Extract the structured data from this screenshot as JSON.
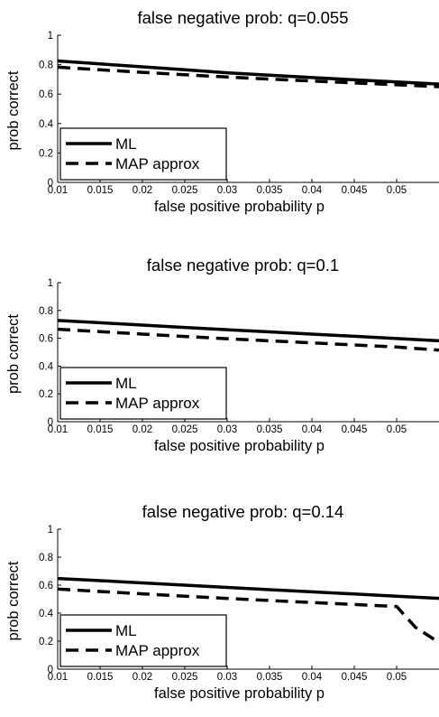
{
  "chart_data": [
    {
      "type": "line",
      "title": "false negative prob: q=0.055",
      "xlabel": "false positive probability p",
      "ylabel": "prob correct",
      "xlim": [
        0.01,
        0.055
      ],
      "ylim": [
        0,
        1
      ],
      "xticks": [
        "0.01",
        "0.015",
        "0.02",
        "0.025",
        "0.03",
        "0.035",
        "0.04",
        "0.045",
        "0.05"
      ],
      "yticks": [
        "0",
        "0.2",
        "0.4",
        "0.6",
        "0.8",
        "1"
      ],
      "legend_position": "lower-left",
      "series": [
        {
          "name": "ML",
          "style": "solid",
          "x": [
            0.01,
            0.015,
            0.02,
            0.025,
            0.03,
            0.035,
            0.04,
            0.045,
            0.05,
            0.055
          ],
          "y": [
            0.825,
            0.805,
            0.785,
            0.765,
            0.745,
            0.728,
            0.712,
            0.697,
            0.682,
            0.668
          ]
        },
        {
          "name": "MAP approx",
          "style": "dashed",
          "x": [
            0.01,
            0.015,
            0.02,
            0.025,
            0.03,
            0.035,
            0.04,
            0.045,
            0.05,
            0.055
          ],
          "y": [
            0.783,
            0.765,
            0.748,
            0.731,
            0.716,
            0.702,
            0.689,
            0.676,
            0.663,
            0.65
          ]
        }
      ]
    },
    {
      "type": "line",
      "title": "false negative prob: q=0.1",
      "xlabel": "false positive probability p",
      "ylabel": "prob correct",
      "xlim": [
        0.01,
        0.055
      ],
      "ylim": [
        0,
        1
      ],
      "xticks": [
        "0.01",
        "0.015",
        "0.02",
        "0.025",
        "0.03",
        "0.035",
        "0.04",
        "0.045",
        "0.05"
      ],
      "yticks": [
        "0",
        "0.2",
        "0.4",
        "0.6",
        "0.8",
        "1"
      ],
      "legend_position": "lower-left",
      "series": [
        {
          "name": "ML",
          "style": "solid",
          "x": [
            0.01,
            0.015,
            0.02,
            0.025,
            0.03,
            0.035,
            0.04,
            0.045,
            0.05,
            0.055
          ],
          "y": [
            0.728,
            0.712,
            0.695,
            0.678,
            0.662,
            0.646,
            0.63,
            0.614,
            0.598,
            0.582
          ]
        },
        {
          "name": "MAP approx",
          "style": "dashed",
          "x": [
            0.01,
            0.015,
            0.02,
            0.025,
            0.03,
            0.035,
            0.04,
            0.045,
            0.05,
            0.055
          ],
          "y": [
            0.665,
            0.648,
            0.63,
            0.613,
            0.597,
            0.582,
            0.567,
            0.552,
            0.537,
            0.515
          ]
        }
      ]
    },
    {
      "type": "line",
      "title": "false negative prob: q=0.14",
      "xlabel": "false positive probability p",
      "ylabel": "prob correct",
      "xlim": [
        0.01,
        0.055
      ],
      "ylim": [
        0,
        1
      ],
      "xticks": [
        "0.01",
        "0.015",
        "0.02",
        "0.025",
        "0.03",
        "0.035",
        "0.04",
        "0.045",
        "0.05"
      ],
      "yticks": [
        "0",
        "0.2",
        "0.4",
        "0.6",
        "0.8",
        "1"
      ],
      "legend_position": "lower-left",
      "series": [
        {
          "name": "ML",
          "style": "solid",
          "x": [
            0.01,
            0.015,
            0.02,
            0.025,
            0.03,
            0.035,
            0.04,
            0.045,
            0.05,
            0.055
          ],
          "y": [
            0.648,
            0.632,
            0.616,
            0.6,
            0.584,
            0.568,
            0.552,
            0.537,
            0.521,
            0.506
          ]
        },
        {
          "name": "MAP approx",
          "style": "dashed",
          "x": [
            0.01,
            0.015,
            0.02,
            0.025,
            0.03,
            0.035,
            0.04,
            0.045,
            0.05,
            0.0522,
            0.055
          ],
          "y": [
            0.572,
            0.555,
            0.538,
            0.521,
            0.505,
            0.49,
            0.476,
            0.462,
            0.448,
            0.3,
            0.19
          ]
        }
      ]
    }
  ]
}
